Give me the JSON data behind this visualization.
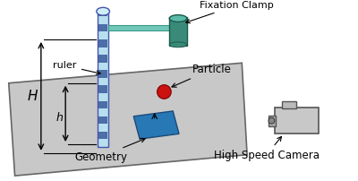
{
  "bg_color": "#ffffff",
  "fig_width": 4.0,
  "fig_height": 2.02,
  "dpi": 100,
  "table_color": "#c8c8c8",
  "table_edge_color": "#666666",
  "geometry_color": "#2878b5",
  "ruler_bg_color": "#b8dff0",
  "ruler_stripe_color": "#3a5a9a",
  "clamp_color": "#3a8a7a",
  "particle_color": "#cc1111",
  "text_H": "H",
  "text_h": "h",
  "text_ruler": "ruler",
  "text_particle": "Particle",
  "text_geometry": "Geometry",
  "text_fixation": "Fixation Clamp",
  "text_camera": "High Speed Camera"
}
